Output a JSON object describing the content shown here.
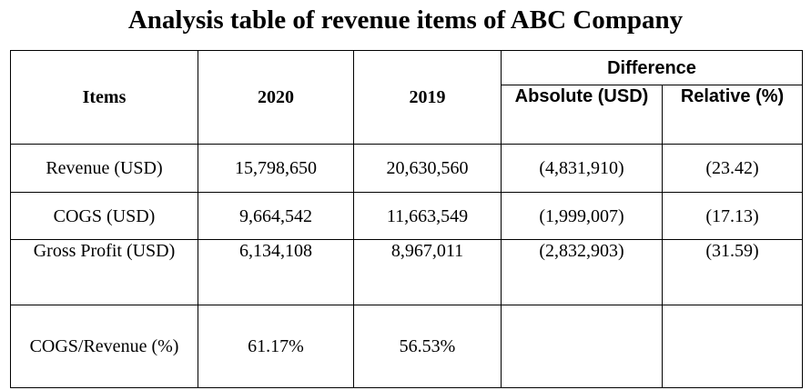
{
  "title": "Analysis table of revenue items of ABC Company",
  "headers": {
    "items": "Items",
    "y2020": "2020",
    "y2019": "2019",
    "difference": "Difference",
    "absolute": "Absolute (USD)",
    "relative": "Relative (%)"
  },
  "rows": [
    {
      "item": "Revenue (USD)",
      "y2020": "15,798,650",
      "y2019": "20,630,560",
      "absolute": "(4,831,910)",
      "relative": "(23.42)"
    },
    {
      "item": "COGS (USD)",
      "y2020": "9,664,542",
      "y2019": "11,663,549",
      "absolute": "(1,999,007)",
      "relative": "(17.13)"
    },
    {
      "item": "Gross Profit (USD)",
      "y2020": "6,134,108",
      "y2019": "8,967,011",
      "absolute": "(2,832,903)",
      "relative": "(31.59)"
    },
    {
      "item": "COGS/Revenue (%)",
      "y2020": "61.17%",
      "y2019": "56.53%",
      "absolute": "",
      "relative": ""
    }
  ]
}
